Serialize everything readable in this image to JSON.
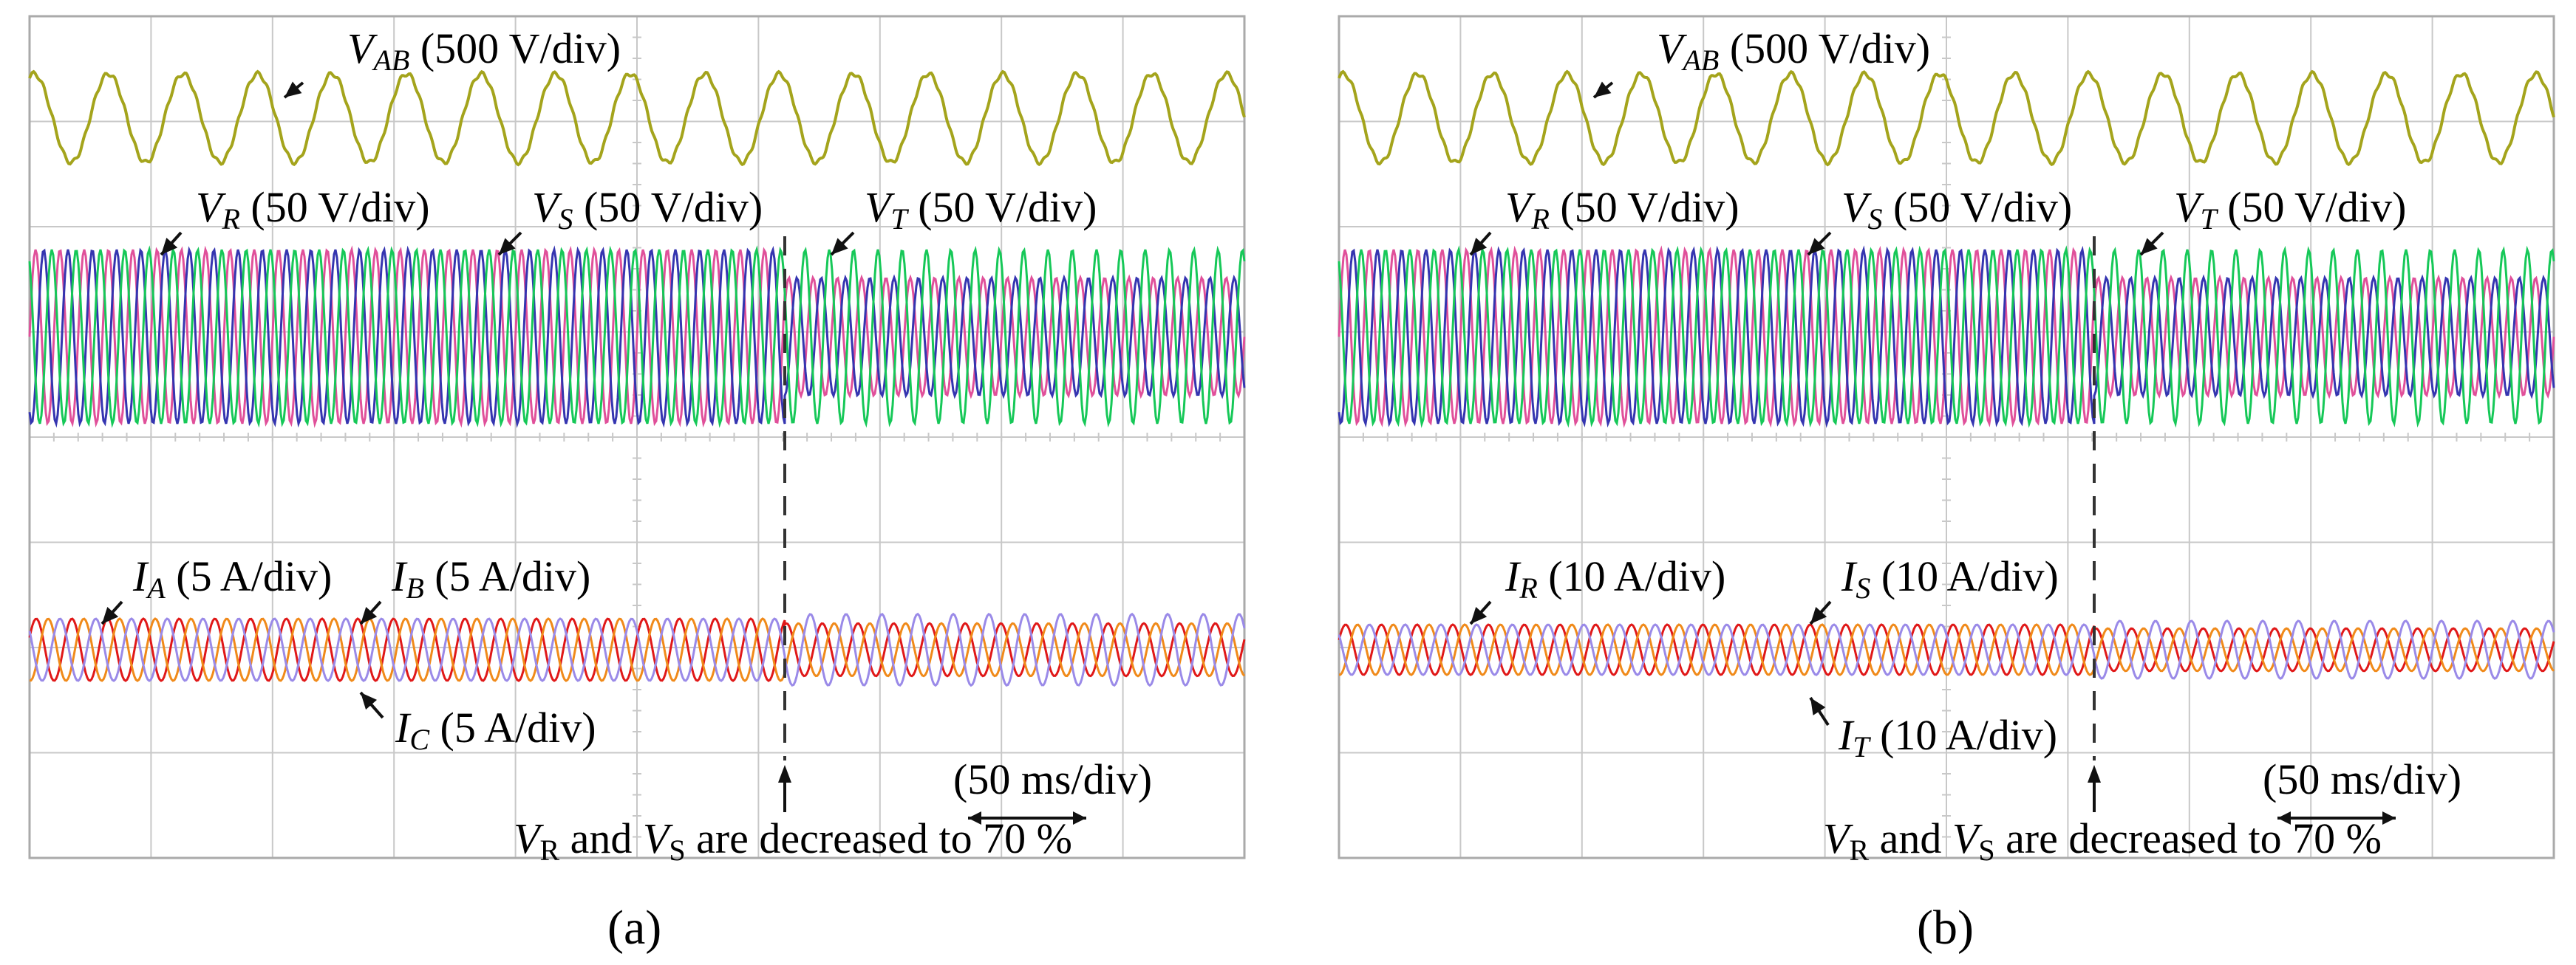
{
  "colors": {
    "vab": "#a4a41c",
    "vr": "#e0509a",
    "vs": "#3535b0",
    "vt": "#16c858",
    "ia_red": "#e01818",
    "ib_orange": "#f08a1a",
    "ic_lilac": "#9a8ae8",
    "grid": "#c8c8c8",
    "frame": "#aaaaaa"
  },
  "chart_data": [
    {
      "type": "line",
      "panel": "a",
      "panel_label": "(a)",
      "x_scale_label": "(50 ms/div)",
      "event_annotation": {
        "pre": "and",
        "post": "are decreased to 70 %",
        "sym1": "V",
        "sub1": "R",
        "sym2": "V",
        "sub2": "S"
      },
      "grid": true,
      "series": [
        {
          "key": "vab",
          "name": "V_AB (500 V/div)",
          "label": {
            "sym": "V",
            "sub": "AB",
            "scale": "(500 V/div)"
          }
        },
        {
          "key": "vr",
          "name": "V_R (50 V/div)",
          "label": {
            "sym": "V",
            "sub": "R",
            "scale": "(50 V/div)"
          }
        },
        {
          "key": "vs",
          "name": "V_S (50 V/div)",
          "label": {
            "sym": "V",
            "sub": "S",
            "scale": "(50 V/div)"
          }
        },
        {
          "key": "vt",
          "name": "V_T (50 V/div)",
          "label": {
            "sym": "V",
            "sub": "T",
            "scale": "(50 V/div)"
          }
        },
        {
          "key": "i1",
          "name": "I_A (5 A/div)",
          "label": {
            "sym": "I",
            "sub": "A",
            "scale": "(5 A/div)"
          }
        },
        {
          "key": "i2",
          "name": "I_B (5 A/div)",
          "label": {
            "sym": "I",
            "sub": "B",
            "scale": "(5 A/div)"
          }
        },
        {
          "key": "i3",
          "name": "I_C (5 A/div)",
          "label": {
            "sym": "I",
            "sub": "C",
            "scale": "(5 A/div)"
          }
        }
      ]
    },
    {
      "type": "line",
      "panel": "b",
      "panel_label": "(b)",
      "x_scale_label": "(50 ms/div)",
      "event_annotation": {
        "pre": "and",
        "post": "are decreased to 70 %",
        "sym1": "V",
        "sub1": "R",
        "sym2": "V",
        "sub2": "S"
      },
      "grid": true,
      "series": [
        {
          "key": "vab",
          "name": "V_AB (500 V/div)",
          "label": {
            "sym": "V",
            "sub": "AB",
            "scale": "(500 V/div)"
          }
        },
        {
          "key": "vr",
          "name": "V_R (50 V/div)",
          "label": {
            "sym": "V",
            "sub": "R",
            "scale": "(50 V/div)"
          }
        },
        {
          "key": "vs",
          "name": "V_S (50 V/div)",
          "label": {
            "sym": "V",
            "sub": "S",
            "scale": "(50 V/div)"
          }
        },
        {
          "key": "vt",
          "name": "V_T (50 V/div)",
          "label": {
            "sym": "V",
            "sub": "T",
            "scale": "(50 V/div)"
          }
        },
        {
          "key": "i1",
          "name": "I_R (10 A/div)",
          "label": {
            "sym": "I",
            "sub": "R",
            "scale": "(10 A/div)"
          }
        },
        {
          "key": "i2",
          "name": "I_S (10 A/div)",
          "label": {
            "sym": "I",
            "sub": "S",
            "scale": "(10 A/div)"
          }
        },
        {
          "key": "i3",
          "name": "I_T (10 A/div)",
          "label": {
            "sym": "I",
            "sub": "T",
            "scale": "(10 A/div)"
          }
        }
      ]
    }
  ]
}
